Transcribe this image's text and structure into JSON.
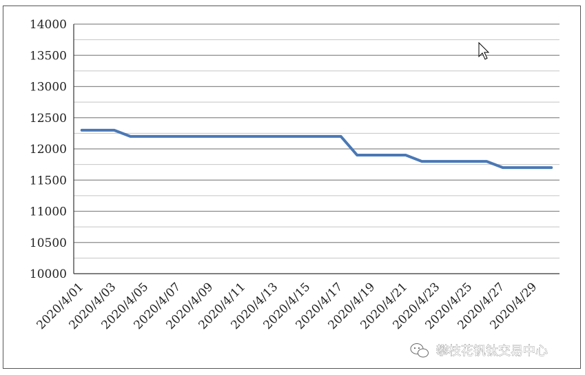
{
  "chart_data": {
    "type": "line",
    "title": "",
    "xlabel": "",
    "ylabel": "",
    "ylim": [
      10000,
      14000
    ],
    "y_ticks": [
      10000,
      10500,
      11000,
      11500,
      12000,
      12500,
      13000,
      13500,
      14000
    ],
    "y_tick_labels": [
      "10000",
      "10500",
      "11000",
      "11500",
      "12000",
      "12500",
      "13000",
      "13500",
      "14000"
    ],
    "grid": "horizontal",
    "legend": "none",
    "x": [
      "2020/4/01",
      "2020/4/02",
      "2020/4/03",
      "2020/4/04",
      "2020/4/05",
      "2020/4/06",
      "2020/4/07",
      "2020/4/08",
      "2020/4/09",
      "2020/4/10",
      "2020/4/11",
      "2020/4/12",
      "2020/4/13",
      "2020/4/14",
      "2020/4/15",
      "2020/4/16",
      "2020/4/17",
      "2020/4/18",
      "2020/4/19",
      "2020/4/20",
      "2020/4/21",
      "2020/4/22",
      "2020/4/23",
      "2020/4/24",
      "2020/4/25",
      "2020/4/26",
      "2020/4/27",
      "2020/4/28",
      "2020/4/29",
      "2020/4/30"
    ],
    "x_tick_labels": [
      "2020/4/01",
      "2020/4/03",
      "2020/4/05",
      "2020/4/07",
      "2020/4/09",
      "2020/4/11",
      "2020/4/13",
      "2020/4/15",
      "2020/4/17",
      "2020/4/19",
      "2020/4/21",
      "2020/4/23",
      "2020/4/25",
      "2020/4/27",
      "2020/4/29"
    ],
    "series": [
      {
        "color": "#4a78b5",
        "values": [
          12300,
          12300,
          12300,
          12200,
          12200,
          12200,
          12200,
          12200,
          12200,
          12200,
          12200,
          12200,
          12200,
          12200,
          12200,
          12200,
          12200,
          11900,
          11900,
          11900,
          11900,
          11800,
          11800,
          11800,
          11800,
          11800,
          11700,
          11700,
          11700,
          11700
        ]
      }
    ]
  },
  "watermark": {
    "text": "攀枝花钒钛交易中心",
    "icon": "wechat-icon"
  },
  "cursor": {
    "icon": "mouse-pointer-icon"
  }
}
